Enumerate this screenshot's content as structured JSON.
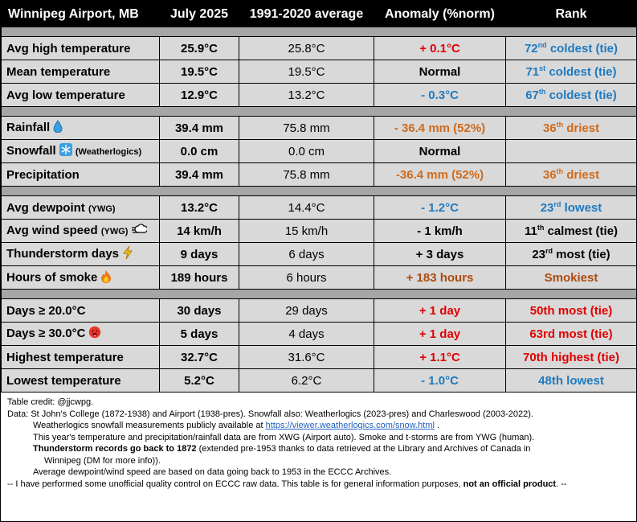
{
  "header": {
    "station": "Winnipeg Airport, MB",
    "period": "July 2025",
    "normal": "1991-2020 average",
    "anomaly": "Anomaly (%norm)",
    "rank": "Rank"
  },
  "rows": {
    "avg_high": {
      "label": "Avg high temperature",
      "value": "25.9°C",
      "normal": "25.8°C",
      "anomaly": "+ 0.1°C",
      "rank_num": "72",
      "rank_sup": "nd",
      "rank_text": " coldest (tie)"
    },
    "mean": {
      "label": "Mean temperature",
      "value": "19.5°C",
      "normal": "19.5°C",
      "anomaly": "Normal",
      "rank_num": "71",
      "rank_sup": "st",
      "rank_text": " coldest (tie)"
    },
    "avg_low": {
      "label": "Avg low temperature",
      "value": "12.9°C",
      "normal": "13.2°C",
      "anomaly": "- 0.3°C",
      "rank_num": "67",
      "rank_sup": "th",
      "rank_text": " coldest (tie)"
    },
    "rainfall": {
      "label": "Rainfall",
      "value": "39.4 mm",
      "normal": "75.8 mm",
      "anomaly": "- 36.4 mm (52%)",
      "rank_num": "36",
      "rank_sup": "th",
      "rank_text": " driest"
    },
    "snowfall": {
      "label": "Snowfall",
      "sublabel": "(Weatherlogics)",
      "value": "0.0 cm",
      "normal": "0.0 cm",
      "anomaly": "Normal",
      "rank": ""
    },
    "precip": {
      "label": "Precipitation",
      "value": "39.4 mm",
      "normal": "75.8 mm",
      "anomaly": "-36.4 mm (52%)",
      "rank_num": "36",
      "rank_sup": "th",
      "rank_text": " driest"
    },
    "dewpoint": {
      "label": "Avg dewpoint",
      "sublabel": "(YWG)",
      "value": "13.2°C",
      "normal": "14.4°C",
      "anomaly": "- 1.2°C",
      "rank_num": "23",
      "rank_sup": "rd",
      "rank_text": " lowest"
    },
    "wind": {
      "label": "Avg wind speed",
      "sublabel": "(YWG)",
      "value": "14 km/h",
      "normal": "15 km/h",
      "anomaly": "- 1 km/h",
      "rank_num": "11",
      "rank_sup": "th",
      "rank_text": " calmest (tie)"
    },
    "thunder": {
      "label": "Thunderstorm days",
      "value": "9 days",
      "normal": "6 days",
      "anomaly": "+ 3 days",
      "rank_num": "23",
      "rank_sup": "rd",
      "rank_text": " most (tie)"
    },
    "smoke": {
      "label": "Hours of smoke",
      "value": "189 hours",
      "normal": "6 hours",
      "anomaly": "+ 183 hours",
      "rank": "Smokiest"
    },
    "days20": {
      "label": "Days ≥ 20.0°C",
      "value": "30 days",
      "normal": "29 days",
      "anomaly": "+ 1 day",
      "rank": "50th most (tie)"
    },
    "days30": {
      "label": "Days ≥ 30.0°C",
      "value": "5 days",
      "normal": "4 days",
      "anomaly": "+ 1 day",
      "rank": "63rd most (tie)"
    },
    "highest": {
      "label": "Highest temperature",
      "value": "32.7°C",
      "normal": "31.6°C",
      "anomaly": "+ 1.1°C",
      "rank": "70th highest (tie)"
    },
    "lowest": {
      "label": "Lowest temperature",
      "value": "5.2°C",
      "normal": "6.2°C",
      "anomaly": "- 1.0°C",
      "rank": "48th lowest"
    }
  },
  "notes": {
    "credit": "Table credit: @jjcwpg.",
    "data": "Data: St John's College (1872-1938) and Airport (1938-pres). Snowfall also: Weatherlogics (2023-pres) and Charleswood (2003-2022).",
    "weatherlogics_pre": "Weatherlogics snowfall measurements publicly available at ",
    "weatherlogics_link": "https://viewer.weatherlogics.com/snow.html",
    "weatherlogics_post": " .",
    "year_data": "This year's temperature  and precipitation/rainfall data are from XWG (Airport auto). Smoke and t-storms are from YWG (human).",
    "thunder_bold": "Thunderstorm records go back to 1872",
    "thunder_rest": " (extended  pre-1953 thanks to data retrieved at the Library and Archives of Canada in",
    "thunder_cont": "Winnipeg (DM for more info)).",
    "dewpoint_note": "Average dewpoint/wind speed are based on data going back to 1953 in the ECCC Archives.",
    "qc_pre": "-- I have performed  some unofficial quality control on ECCC raw data. This table is for general information purposes, ",
    "qc_bold": "not an official  product",
    "qc_post": ".  --"
  },
  "colors": {
    "header_bg": "#000000",
    "row_bg": "#d9d9d9",
    "spacer_bg": "#a6a6a6",
    "red": "#e00000",
    "blue": "#1f7ac0",
    "orange": "#d06a1a",
    "brown": "#b04a10"
  },
  "icons": {
    "rainfall": "water-drop-icon",
    "snowfall": "snowflake-icon",
    "wind": "wind-cloud-icon",
    "thunder": "lightning-bolt-icon",
    "smoke": "fire-icon",
    "days30": "hot-face-icon"
  }
}
